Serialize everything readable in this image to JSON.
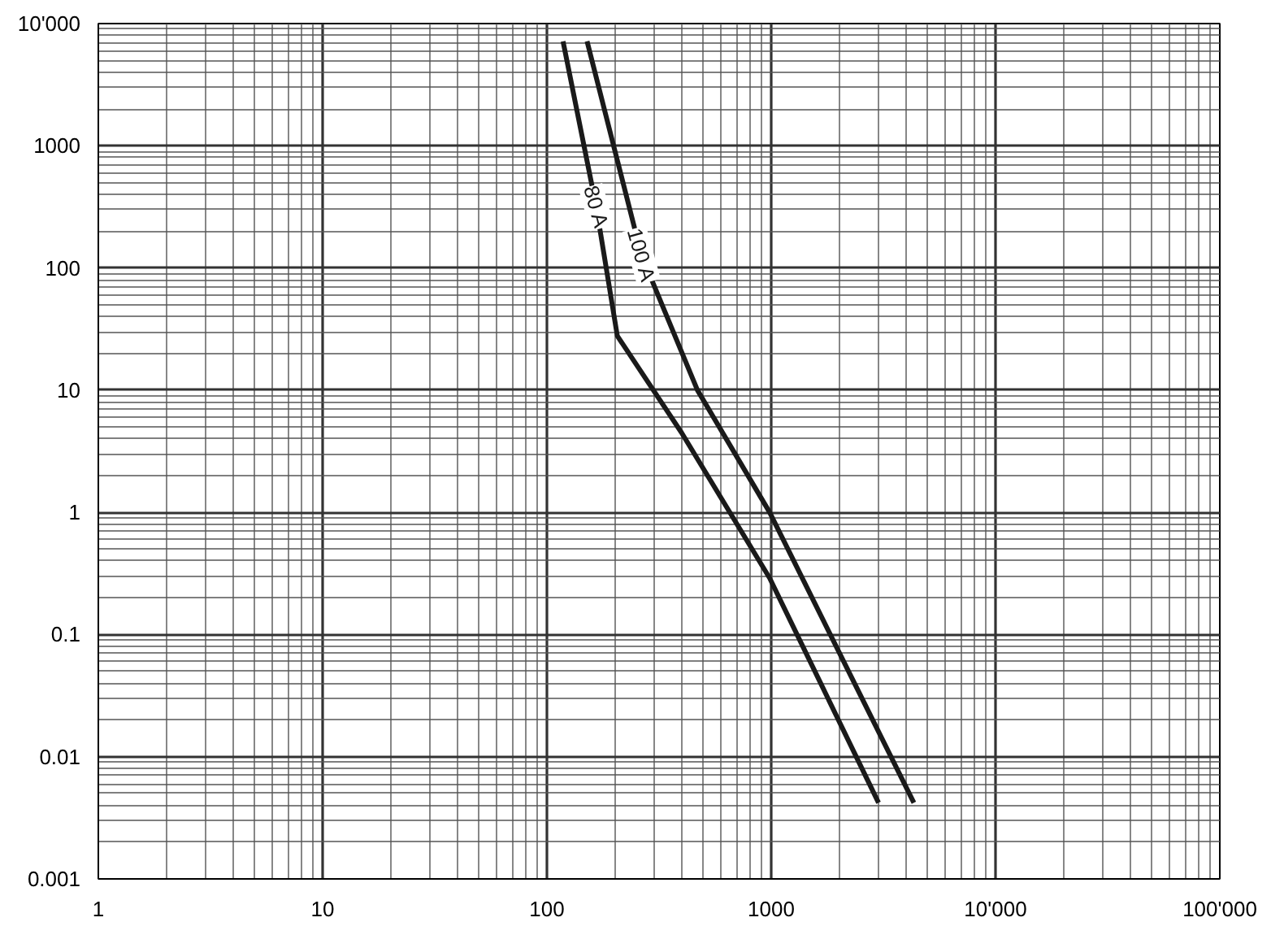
{
  "chart_data": {
    "type": "line",
    "log": "xy",
    "grid": true,
    "marker": "none",
    "line_style": "solid",
    "xlim": [
      1,
      100000
    ],
    "ylim": [
      0.001,
      10000
    ],
    "xticks": [
      1,
      10,
      100,
      1000,
      {
        "value": 10000,
        "label": "10'000"
      },
      {
        "value": 100000,
        "label": "100'000"
      }
    ],
    "yticks": [
      0.001,
      0.01,
      0.1,
      1,
      10,
      100,
      1000,
      {
        "value": 10000,
        "label": "10'000"
      }
    ],
    "series": [
      {
        "name": "80 A",
        "color": "#1a1a1a",
        "x": [
          118,
          166,
          206,
          398,
          984,
          3010
        ],
        "values": [
          7160,
          315,
          27.8,
          4.5,
          0.29,
          0.0042
        ]
      },
      {
        "name": "100 A",
        "color": "#1a1a1a",
        "x": [
          151,
          264,
          469,
          984,
          4325
        ],
        "values": [
          7160,
          127,
          10,
          1,
          0.0042
        ]
      }
    ]
  }
}
